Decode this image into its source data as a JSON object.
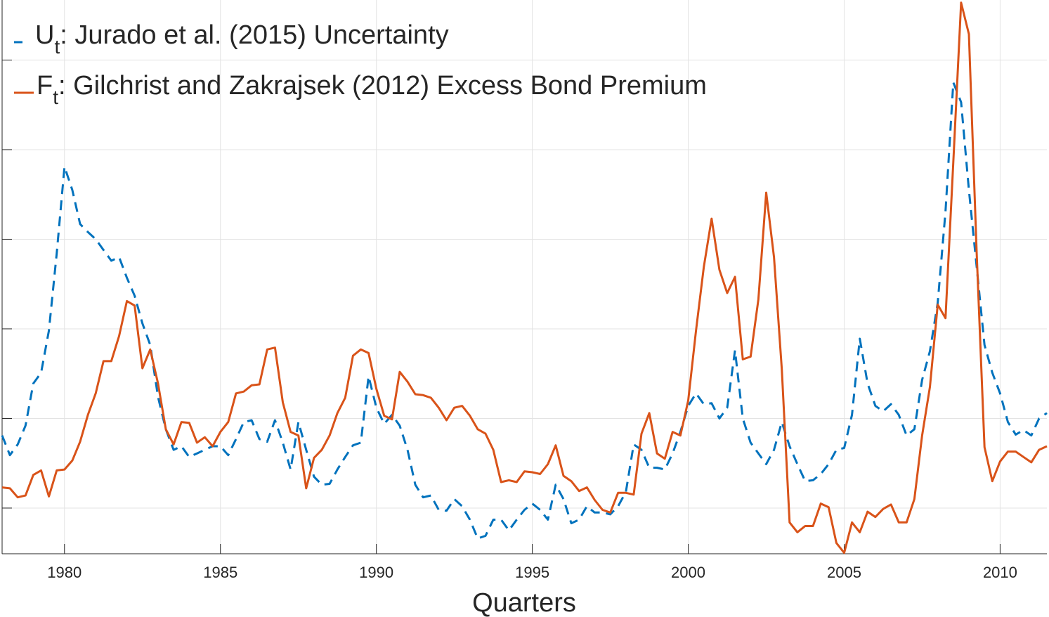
{
  "chart_data": {
    "type": "line",
    "x_label": "Quarters",
    "xlim": [
      1978,
      2011.5
    ],
    "ylim": [
      0.49,
      6.67
    ],
    "xticks": [
      1980,
      1985,
      1990,
      1995,
      2000,
      2005,
      2010
    ],
    "yticks": [
      1,
      2,
      3,
      4,
      5,
      6
    ],
    "grid": true,
    "legend": "upper left",
    "x": [
      1978,
      1978.25,
      1978.5,
      1978.75,
      1979,
      1979.25,
      1979.5,
      1979.75,
      1980,
      1980.25,
      1980.5,
      1980.75,
      1981,
      1981.25,
      1981.5,
      1981.75,
      1982,
      1982.25,
      1982.5,
      1982.75,
      1983,
      1983.25,
      1983.5,
      1983.75,
      1984,
      1984.25,
      1984.5,
      1984.75,
      1985,
      1985.25,
      1985.5,
      1985.75,
      1986,
      1986.25,
      1986.5,
      1986.75,
      1987,
      1987.25,
      1987.5,
      1987.75,
      1988,
      1988.25,
      1988.5,
      1988.75,
      1989,
      1989.25,
      1989.5,
      1989.75,
      1990,
      1990.25,
      1990.5,
      1990.75,
      1991,
      1991.25,
      1991.5,
      1991.75,
      1992,
      1992.25,
      1992.5,
      1992.75,
      1993,
      1993.25,
      1993.5,
      1993.75,
      1994,
      1994.25,
      1994.5,
      1994.75,
      1995,
      1995.25,
      1995.5,
      1995.75,
      1996,
      1996.25,
      1996.5,
      1996.75,
      1997,
      1997.25,
      1997.5,
      1997.75,
      1998,
      1998.25,
      1998.5,
      1998.75,
      1999,
      1999.25,
      1999.5,
      1999.75,
      2000,
      2000.25,
      2000.5,
      2000.75,
      2001,
      2001.25,
      2001.5,
      2001.75,
      2002,
      2002.25,
      2002.5,
      2002.75,
      2003,
      2003.25,
      2003.5,
      2003.75,
      2004,
      2004.25,
      2004.5,
      2004.75,
      2005,
      2005.25,
      2005.5,
      2005.75,
      2006,
      2006.25,
      2006.5,
      2006.75,
      2007,
      2007.25,
      2007.5,
      2007.75,
      2008,
      2008.25,
      2008.5,
      2008.75,
      2009,
      2009.25,
      2009.5,
      2009.75,
      2010,
      2010.25,
      2010.5,
      2010.75,
      2011,
      2011.25,
      2011.5
    ],
    "series": [
      {
        "name": "U",
        "name_sub": "t",
        "name_rest": ": Jurado et al. (2015) Uncertainty",
        "color": "#0072BD",
        "dashed": true,
        "values": [
          1.81,
          1.59,
          1.71,
          1.92,
          2.39,
          2.51,
          2.98,
          3.84,
          4.81,
          4.55,
          4.17,
          4.08,
          4.0,
          3.88,
          3.76,
          3.8,
          3.57,
          3.37,
          3.06,
          2.82,
          2.24,
          1.88,
          1.65,
          1.69,
          1.57,
          1.61,
          1.65,
          1.69,
          1.69,
          1.59,
          1.77,
          1.96,
          1.98,
          1.77,
          1.74,
          1.98,
          1.73,
          1.43,
          1.96,
          1.65,
          1.35,
          1.26,
          1.27,
          1.43,
          1.57,
          1.7,
          1.73,
          2.47,
          2.12,
          1.94,
          2.04,
          1.92,
          1.65,
          1.26,
          1.12,
          1.14,
          0.98,
          0.97,
          1.1,
          1.02,
          0.87,
          0.66,
          0.69,
          0.87,
          0.87,
          0.75,
          0.87,
          0.98,
          1.05,
          0.98,
          0.87,
          1.26,
          1.1,
          0.83,
          0.87,
          1.02,
          0.95,
          0.95,
          0.93,
          1.02,
          1.18,
          1.71,
          1.65,
          1.45,
          1.45,
          1.43,
          1.61,
          1.85,
          2.14,
          2.28,
          2.16,
          2.17,
          2.0,
          2.12,
          2.76,
          2.0,
          1.73,
          1.61,
          1.49,
          1.65,
          1.96,
          1.69,
          1.49,
          1.3,
          1.31,
          1.38,
          1.49,
          1.65,
          1.67,
          2.04,
          2.89,
          2.39,
          2.14,
          2.08,
          2.16,
          2.04,
          1.81,
          1.88,
          2.43,
          2.75,
          3.29,
          4.31,
          5.75,
          5.53,
          4.55,
          3.69,
          2.82,
          2.51,
          2.28,
          1.96,
          1.82,
          1.87,
          1.81,
          2.0,
          2.06
        ]
      },
      {
        "name": "F",
        "name_sub": "t",
        "name_rest": ": Gilchrist and Zakrajsek (2012) Excess Bond Premium",
        "color": "#D95319",
        "dashed": false,
        "values": [
          1.23,
          1.22,
          1.12,
          1.14,
          1.37,
          1.42,
          1.13,
          1.42,
          1.43,
          1.53,
          1.74,
          2.04,
          2.28,
          2.64,
          2.64,
          2.92,
          3.31,
          3.26,
          2.56,
          2.77,
          2.39,
          1.88,
          1.71,
          1.96,
          1.95,
          1.73,
          1.79,
          1.69,
          1.85,
          1.96,
          2.28,
          2.3,
          2.37,
          2.38,
          2.77,
          2.79,
          2.18,
          1.85,
          1.81,
          1.22,
          1.56,
          1.65,
          1.81,
          2.06,
          2.23,
          2.7,
          2.77,
          2.73,
          2.33,
          2.03,
          1.99,
          2.52,
          2.41,
          2.27,
          2.26,
          2.23,
          2.12,
          1.98,
          2.12,
          2.14,
          2.03,
          1.88,
          1.83,
          1.65,
          1.29,
          1.31,
          1.29,
          1.41,
          1.4,
          1.38,
          1.49,
          1.7,
          1.36,
          1.3,
          1.19,
          1.23,
          1.09,
          0.98,
          0.95,
          1.17,
          1.17,
          1.15,
          1.83,
          2.06,
          1.61,
          1.55,
          1.85,
          1.81,
          2.2,
          2.98,
          3.69,
          4.23,
          3.66,
          3.4,
          3.58,
          2.66,
          2.69,
          3.33,
          4.52,
          3.8,
          2.55,
          0.84,
          0.73,
          0.8,
          0.8,
          1.05,
          1.01,
          0.61,
          0.5,
          0.84,
          0.73,
          0.96,
          0.9,
          0.99,
          1.04,
          0.84,
          0.84,
          1.1,
          1.81,
          2.35,
          3.27,
          3.12,
          4.86,
          6.64,
          6.29,
          3.84,
          1.68,
          1.3,
          1.52,
          1.63,
          1.63,
          1.57,
          1.51,
          1.65,
          1.69
        ]
      }
    ]
  }
}
